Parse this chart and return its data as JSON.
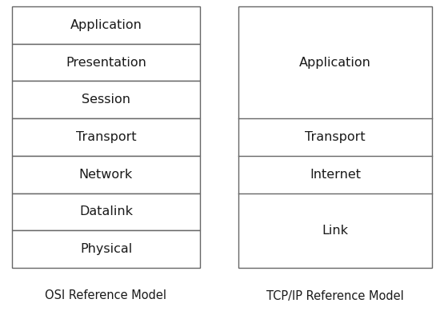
{
  "osi_layers": [
    "Application",
    "Presentation",
    "Session",
    "Transport",
    "Network",
    "Datalink",
    "Physical"
  ],
  "tcpip_layers": [
    {
      "label": "Application",
      "span": 3
    },
    {
      "label": "Transport",
      "span": 1
    },
    {
      "label": "Internet",
      "span": 1
    },
    {
      "label": "Link",
      "span": 2
    }
  ],
  "osi_title": "OSI Reference Model",
  "tcpip_title": "TCP/IP Reference Model",
  "box_edge_color": "#666666",
  "box_face_color": "#ffffff",
  "text_color": "#1a1a1a",
  "bg_color": "#ffffff",
  "title_fontsize": 10.5,
  "layer_fontsize": 11.5,
  "fig_width": 5.6,
  "fig_height": 3.99,
  "dpi": 100
}
